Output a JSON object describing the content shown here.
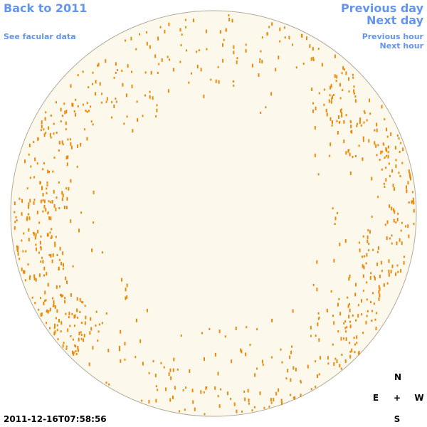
{
  "nav": {
    "back": "Back to 2011",
    "facular": "See facular data",
    "previous_day": "Previous day",
    "next_day": "Next day",
    "previous_hour": "Previous hour",
    "next_hour": "Next hour"
  },
  "timestamp": "2011-12-16T07:58:56",
  "compass": {
    "north": "N",
    "east": "E",
    "center": "+",
    "west": "W",
    "south": "S"
  }
}
